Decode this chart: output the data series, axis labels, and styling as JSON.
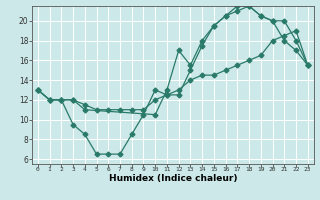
{
  "xlabel": "Humidex (Indice chaleur)",
  "background_color": "#cce8e8",
  "grid_color": "#ffffff",
  "line_color": "#2a7a6a",
  "xlim": [
    -0.5,
    23.5
  ],
  "ylim": [
    5.5,
    21.5
  ],
  "xticks": [
    0,
    1,
    2,
    3,
    4,
    5,
    6,
    7,
    8,
    9,
    10,
    11,
    12,
    13,
    14,
    15,
    16,
    17,
    18,
    19,
    20,
    21,
    22,
    23
  ],
  "yticks": [
    6,
    8,
    10,
    12,
    14,
    16,
    18,
    20
  ],
  "line1_x": [
    0,
    1,
    2,
    3,
    4,
    5,
    6,
    7,
    8,
    9,
    10,
    11,
    12,
    13,
    14,
    15,
    16,
    17,
    18,
    19,
    20,
    21,
    22,
    23
  ],
  "line1_y": [
    13,
    12,
    12,
    9.5,
    8.5,
    6.5,
    6.5,
    6.5,
    8.5,
    10.5,
    13,
    12.5,
    12.5,
    15,
    17.5,
    19.5,
    20.5,
    21.0,
    21.5,
    20.5,
    20,
    18,
    17,
    15.5
  ],
  "line2_x": [
    0,
    1,
    2,
    3,
    4,
    10,
    11,
    12,
    13,
    14,
    15,
    16,
    17,
    18,
    19,
    20,
    21,
    22,
    23
  ],
  "line2_y": [
    13,
    12,
    12,
    12,
    11,
    10.5,
    13,
    17,
    15.5,
    18,
    19.5,
    20.5,
    21.5,
    21.5,
    20.5,
    20,
    20,
    18,
    15.5
  ],
  "line3_x": [
    0,
    1,
    2,
    3,
    4,
    5,
    6,
    7,
    8,
    9,
    10,
    11,
    12,
    13,
    14,
    15,
    16,
    17,
    18,
    19,
    20,
    21,
    22,
    23
  ],
  "line3_y": [
    13,
    12,
    12,
    12,
    11.5,
    11,
    11,
    11,
    11,
    11,
    12,
    12.5,
    13,
    14,
    14.5,
    14.5,
    15,
    15.5,
    16,
    16.5,
    18,
    18.5,
    19,
    15.5
  ]
}
